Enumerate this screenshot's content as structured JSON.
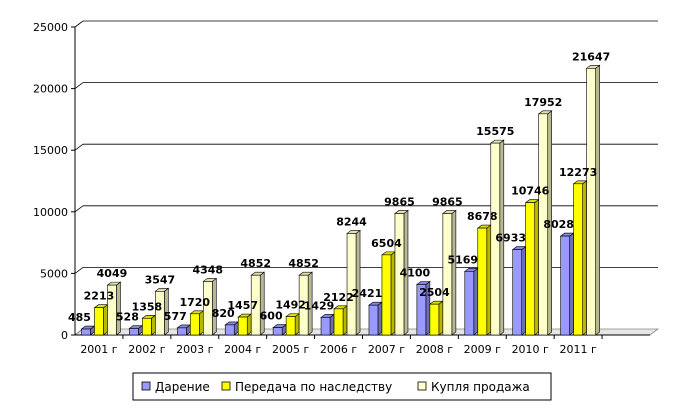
{
  "chart_data": {
    "type": "bar",
    "subtype": "3d-clustered-column",
    "categories": [
      "2001 г",
      "2002 г",
      "2003 г",
      "2004 г",
      "2005 г",
      "2006 г",
      "2007 г",
      "2008 г",
      "2009 г",
      "2010 г",
      "2011 г"
    ],
    "series": [
      {
        "name": "Дарение",
        "color": "#9999ff",
        "values": [
          485,
          528,
          577,
          820,
          600,
          1429,
          2421,
          4100,
          5169,
          6933,
          8028
        ]
      },
      {
        "name": "Передача по наследству",
        "color": "#ffff00",
        "values": [
          2213,
          1358,
          1720,
          1457,
          1492,
          2122,
          6504,
          2504,
          8678,
          10746,
          12273
        ]
      },
      {
        "name": "Купля продажа",
        "color": "#ffffcc",
        "values": [
          4049,
          3547,
          4348,
          4852,
          4852,
          8244,
          9865,
          9865,
          15575,
          17952,
          21647
        ]
      }
    ],
    "data_labels": [
      [
        "485",
        "528",
        "577",
        "820",
        "600",
        "1429",
        "2421",
        "4100",
        "5169",
        "6933",
        "8028"
      ],
      [
        "2213",
        "1358",
        "1720",
        "1457",
        "1492",
        "2122",
        "6504",
        "2504",
        "8678",
        "10746",
        "12273"
      ],
      [
        "4049",
        "3547",
        "4348",
        "4852",
        "4852",
        "8244",
        "9865",
        "9865",
        "15575",
        "17952",
        "21647"
      ]
    ],
    "yticks": [
      "0",
      "5000",
      "10000",
      "15000",
      "20000",
      "25000"
    ],
    "ylim": [
      0,
      25000
    ],
    "grid": true,
    "legend_position": "bottom",
    "legend": [
      "Дарение",
      "Передача по наследству",
      "Купля продажа"
    ]
  }
}
